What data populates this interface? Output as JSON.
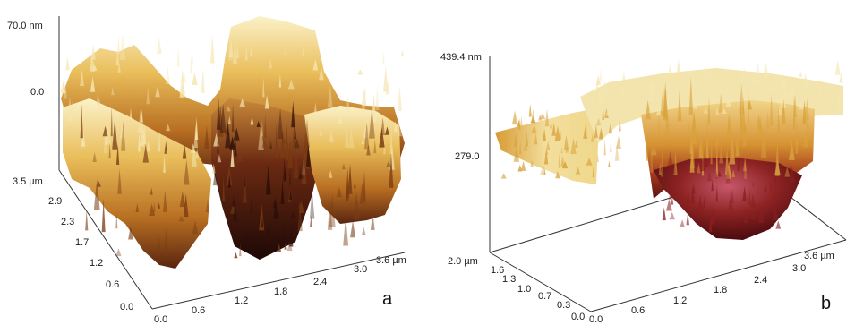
{
  "panels": [
    {
      "letter": "a",
      "z_top": "70.0 nm",
      "z_mid": "0.0",
      "y_ticks": [
        "3.5 µm",
        "2.9",
        "2.3",
        "1.7",
        "1.2",
        "0.6",
        "0.0"
      ],
      "x_ticks": [
        "0.0",
        "0.6",
        "1.2",
        "1.8",
        "2.4",
        "3.0",
        "3.6 µm"
      ]
    },
    {
      "letter": "b",
      "z_top": "439.4 nm",
      "z_mid": "279.0",
      "y_ticks": [
        "2.0 µm",
        "1.6",
        "1.3",
        "1.0",
        "0.7",
        "0.3",
        "0.0"
      ],
      "x_ticks": [
        "0.0",
        "0.6",
        "1.2",
        "1.8",
        "2.4",
        "3.0",
        "3.6 µm"
      ]
    }
  ],
  "colors": {
    "surface_light": "#f5e6b0",
    "surface_gold": "#d9a23c",
    "surface_brown": "#7a3b12",
    "surface_dark": "#2a0f08",
    "pit_red": "#8a1f1f"
  }
}
